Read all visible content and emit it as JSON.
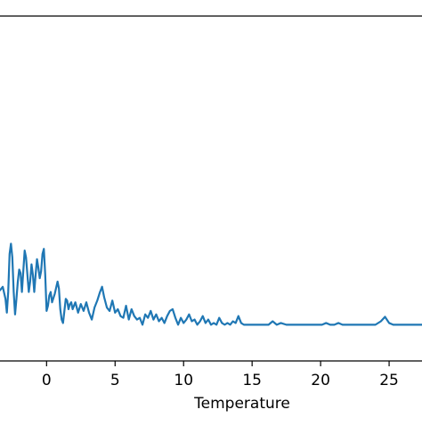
{
  "chart_data": {
    "type": "line",
    "title": "",
    "xlabel": "Temperature",
    "ylabel": "",
    "xlim": [
      -3.4,
      27.4
    ],
    "ylim": [
      0,
      1
    ],
    "grid": false,
    "x_ticks": [
      0,
      5,
      10,
      15,
      20,
      25
    ],
    "x_tick_labels": [
      "0",
      "5",
      "10",
      "15",
      "20",
      "25"
    ],
    "series": [
      {
        "color": "#1f77b4",
        "x": [
          -3.4,
          -3.2,
          -3.0,
          -2.9,
          -2.8,
          -2.7,
          -2.6,
          -2.5,
          -2.4,
          -2.3,
          -2.2,
          -2.1,
          -2.0,
          -1.9,
          -1.8,
          -1.7,
          -1.6,
          -1.5,
          -1.4,
          -1.3,
          -1.2,
          -1.1,
          -1.0,
          -0.9,
          -0.8,
          -0.7,
          -0.6,
          -0.5,
          -0.4,
          -0.3,
          -0.2,
          -0.1,
          0.0,
          0.1,
          0.2,
          0.3,
          0.4,
          0.6,
          0.8,
          0.9,
          1.0,
          1.1,
          1.2,
          1.4,
          1.5,
          1.6,
          1.7,
          1.8,
          1.9,
          2.1,
          2.3,
          2.5,
          2.7,
          2.9,
          3.1,
          3.3,
          3.5,
          3.7,
          3.9,
          4.05,
          4.2,
          4.4,
          4.6,
          4.8,
          5.0,
          5.2,
          5.4,
          5.6,
          5.8,
          6.0,
          6.2,
          6.4,
          6.6,
          6.8,
          7.0,
          7.2,
          7.4,
          7.6,
          7.8,
          8.0,
          8.2,
          8.4,
          8.6,
          8.8,
          9.0,
          9.2,
          9.4,
          9.6,
          9.8,
          10.0,
          10.2,
          10.4,
          10.6,
          10.8,
          11.0,
          11.2,
          11.4,
          11.6,
          11.8,
          12.0,
          12.2,
          12.4,
          12.6,
          12.8,
          13.0,
          13.2,
          13.4,
          13.6,
          13.8,
          14.0,
          14.2,
          14.4,
          14.6,
          14.8,
          15.0,
          15.4,
          15.8,
          16.2,
          16.5,
          16.8,
          17.1,
          17.5,
          18.0,
          18.5,
          19.0,
          19.5,
          19.8,
          20.1,
          20.4,
          20.7,
          21.0,
          21.3,
          21.6,
          22.0,
          23.0,
          24.0,
          24.4,
          24.7,
          25.0,
          25.3,
          25.7,
          26.0,
          27.4
        ],
        "y": [
          0.205,
          0.215,
          0.18,
          0.14,
          0.2,
          0.31,
          0.34,
          0.3,
          0.2,
          0.135,
          0.18,
          0.23,
          0.265,
          0.255,
          0.2,
          0.26,
          0.32,
          0.3,
          0.25,
          0.2,
          0.23,
          0.28,
          0.25,
          0.2,
          0.25,
          0.295,
          0.27,
          0.24,
          0.26,
          0.31,
          0.325,
          0.25,
          0.145,
          0.16,
          0.19,
          0.2,
          0.17,
          0.195,
          0.23,
          0.21,
          0.15,
          0.12,
          0.11,
          0.18,
          0.175,
          0.15,
          0.165,
          0.17,
          0.15,
          0.17,
          0.14,
          0.165,
          0.145,
          0.17,
          0.14,
          0.12,
          0.155,
          0.175,
          0.2,
          0.215,
          0.185,
          0.155,
          0.145,
          0.175,
          0.14,
          0.15,
          0.13,
          0.125,
          0.16,
          0.12,
          0.15,
          0.13,
          0.12,
          0.125,
          0.105,
          0.135,
          0.125,
          0.145,
          0.12,
          0.135,
          0.115,
          0.125,
          0.11,
          0.13,
          0.145,
          0.15,
          0.125,
          0.105,
          0.125,
          0.11,
          0.12,
          0.135,
          0.115,
          0.12,
          0.105,
          0.115,
          0.13,
          0.11,
          0.12,
          0.105,
          0.11,
          0.105,
          0.125,
          0.11,
          0.105,
          0.11,
          0.105,
          0.115,
          0.11,
          0.13,
          0.11,
          0.105,
          0.105,
          0.105,
          0.105,
          0.105,
          0.105,
          0.105,
          0.115,
          0.105,
          0.11,
          0.105,
          0.105,
          0.105,
          0.105,
          0.105,
          0.105,
          0.105,
          0.11,
          0.105,
          0.105,
          0.11,
          0.105,
          0.105,
          0.105,
          0.105,
          0.115,
          0.128,
          0.11,
          0.105,
          0.105,
          0.105,
          0.105
        ]
      }
    ]
  }
}
